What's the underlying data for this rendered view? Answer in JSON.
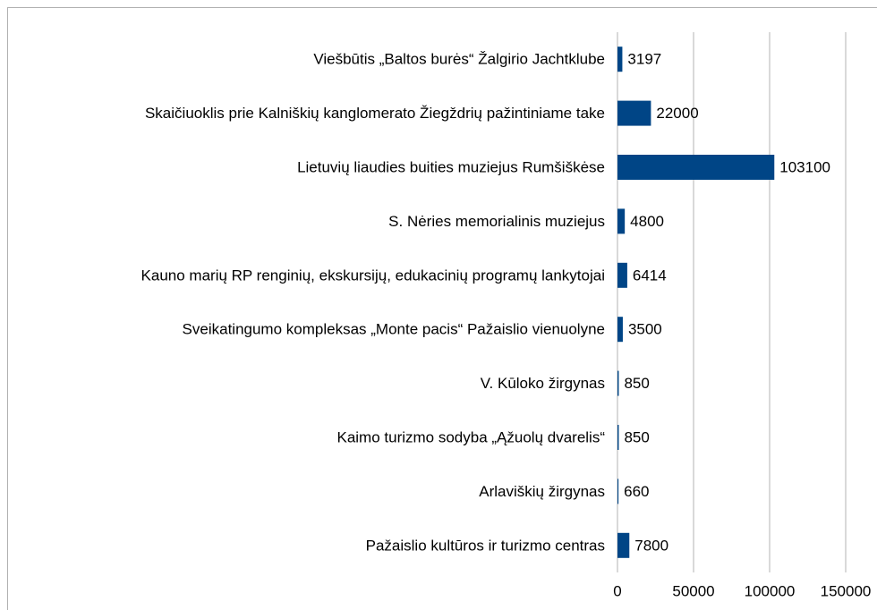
{
  "chart_data": {
    "type": "bar",
    "orientation": "horizontal",
    "color": "#004586",
    "grid": true,
    "categories": [
      "Viešbūtis „Baltos burės“ Žalgirio Jachtklube",
      "Skaičiuoklis prie Kalniškių kanglomerato Žiegždrių pažintiniame take",
      "Lietuvių liaudies buities muziejus Rumšiškėse",
      "S. Nėries memorialinis muziejus",
      "Kauno marių RP renginių, ekskursijų, edukacinių programų lankytojai",
      "Sveikatingumo kompleksas „Monte pacis“ Pažaislio vienuolyne",
      "V. Kūloko žirgynas",
      "Kaimo turizmo sodyba „Ąžuolų dvarelis“",
      "Arlaviškių žirgynas",
      "Pažaislio kultūros ir turizmo centras"
    ],
    "values": [
      3197,
      22000,
      103100,
      4800,
      6414,
      3500,
      850,
      850,
      660,
      7800
    ],
    "xlim": [
      0,
      150000
    ],
    "xticks": [
      0,
      50000,
      100000,
      150000
    ]
  }
}
